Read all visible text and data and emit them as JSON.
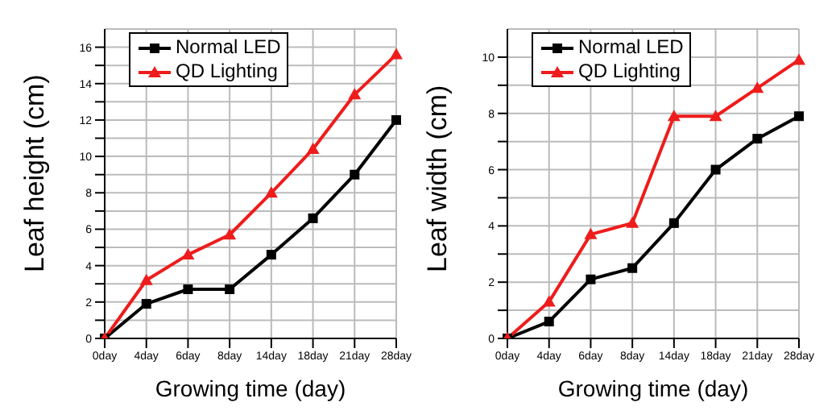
{
  "chart_data": [
    {
      "type": "line",
      "xlabel": "Growing time (day)",
      "ylabel": "Leaf height (cm)",
      "categories": [
        "0day",
        "4day",
        "6day",
        "8day",
        "14day",
        "18day",
        "21day",
        "28day"
      ],
      "series": [
        {
          "name": "Normal LED",
          "color": "#000000",
          "marker": "square",
          "values": [
            0,
            1.9,
            2.7,
            2.7,
            4.6,
            6.6,
            9,
            12
          ]
        },
        {
          "name": "QD Lighting",
          "color": "#ee1c1c",
          "marker": "triangle",
          "values": [
            0,
            3.2,
            4.6,
            5.7,
            8,
            10.4,
            13.4,
            15.6
          ]
        }
      ],
      "ylim": [
        0,
        17
      ],
      "yticks": [
        0,
        {
          "value": 1,
          "label": null
        },
        2,
        {
          "value": 3,
          "label": null
        },
        4,
        {
          "value": 5,
          "label": null
        },
        6,
        {
          "value": 7,
          "label": null
        },
        8,
        {
          "value": 9,
          "label": null
        },
        10,
        {
          "value": 11,
          "label": null
        },
        12,
        {
          "value": 13,
          "label": null
        },
        14,
        {
          "value": 15,
          "label": null
        },
        16
      ],
      "grid": true,
      "legend": "top left"
    },
    {
      "type": "line",
      "xlabel": "Growing time (day)",
      "ylabel": "Leaf width (cm)",
      "categories": [
        "0day",
        "4day",
        "6day",
        "8day",
        "14day",
        "18day",
        "21day",
        "28day"
      ],
      "series": [
        {
          "name": "Normal LED",
          "color": "#000000",
          "marker": "square",
          "values": [
            0,
            0.6,
            2.1,
            2.5,
            4.1,
            6,
            7.1,
            7.9
          ]
        },
        {
          "name": "QD Lighting",
          "color": "#ee1c1c",
          "marker": "triangle",
          "values": [
            0,
            1.3,
            3.7,
            4.1,
            7.9,
            7.9,
            8.9,
            9.9
          ]
        }
      ],
      "ylim": [
        0,
        11
      ],
      "yticks": [
        0,
        {
          "value": 1,
          "label": null
        },
        2,
        {
          "value": 3,
          "label": null
        },
        4,
        {
          "value": 5,
          "label": null
        },
        6,
        {
          "value": 7,
          "label": null
        },
        8,
        {
          "value": 9,
          "label": null
        },
        10
      ],
      "grid": true,
      "legend": "top left"
    }
  ]
}
